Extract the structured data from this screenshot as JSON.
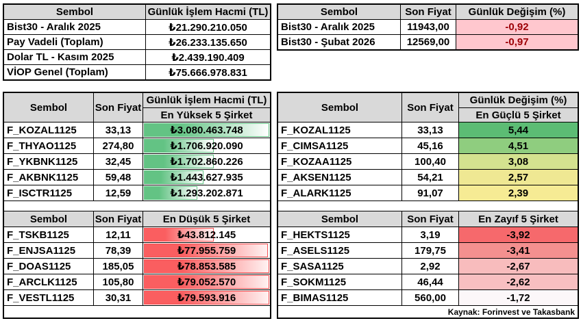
{
  "source_note": "Kaynak: Forinvest ve Takasbank",
  "palette": {
    "header_bg": "#D9D9D9",
    "border": "#000000",
    "bad_cell_bg": "#FFC7CE",
    "bad_cell_text": "#9C0006",
    "green_bar": "#63C384",
    "red_bar": "#FA5E60"
  },
  "volume_summary": {
    "col_symbol": "Sembol",
    "col_volume": "Günlük İşlem Hacmi (TL)",
    "rows": [
      {
        "symbol": "Bist30 - Aralık 2025",
        "volume": "₺21.290.210.050"
      },
      {
        "symbol": "Pay Vadeli (Toplam)",
        "volume": "₺26.233.135.650"
      },
      {
        "symbol": "Dolar TL - Kasım 2025",
        "volume": "₺2.439.190.409"
      },
      {
        "symbol": "VİOP Genel (Toplam)",
        "volume": "₺75.666.978.831"
      }
    ]
  },
  "index_change": {
    "col_symbol": "Sembol",
    "col_price": "Son Fiyat",
    "col_change": "Günlük Değişim (%)",
    "rows": [
      {
        "symbol": "Bist30 - Aralık 2025",
        "price": "11943,00",
        "change": "-0,92"
      },
      {
        "symbol": "Bist30 -  Şubat 2026",
        "price": "12569,00",
        "change": "-0,97"
      }
    ]
  },
  "volume_leaders": {
    "col_symbol": "Sembol",
    "col_price": "Son Fiyat",
    "col_value_line1": "Günlük İşlem Hacmi (TL)",
    "top_title": "En Yüksek 5 Şirket",
    "bottom_title": "En Düşük 5 Şirket",
    "top_rows": [
      {
        "symbol": "F_KOZAL1125",
        "price": "33,13",
        "volume": "₺3.080.463.748",
        "bar_pct": 100
      },
      {
        "symbol": "F_THYAO1125",
        "price": "274,80",
        "volume": "₺1.706.920.090",
        "bar_pct": 55.4
      },
      {
        "symbol": "F_YKBNK1125",
        "price": "32,45",
        "volume": "₺1.702.860.226",
        "bar_pct": 55.3
      },
      {
        "symbol": "F_AKBNK1125",
        "price": "59,48",
        "volume": "₺1.443.627.935",
        "bar_pct": 46.9
      },
      {
        "symbol": "F_ISCTR1125",
        "price": "12,59",
        "volume": "₺1.293.202.871",
        "bar_pct": 42.0
      }
    ],
    "bottom_rows": [
      {
        "symbol": "F_TSKB1125",
        "price": "12,11",
        "volume": "₺43.812.145",
        "bar_pct": 55.0
      },
      {
        "symbol": "F_ENJSA1125",
        "price": "78,39",
        "volume": "₺77.955.759",
        "bar_pct": 97.9
      },
      {
        "symbol": "F_DOAS1125",
        "price": "185,05",
        "volume": "₺78.853.585",
        "bar_pct": 99.1
      },
      {
        "symbol": "F_ARCLK1125",
        "price": "105,80",
        "volume": "₺79.052.570",
        "bar_pct": 99.3
      },
      {
        "symbol": "F_VESTL1125",
        "price": "30,31",
        "volume": "₺79.593.916",
        "bar_pct": 100
      }
    ]
  },
  "change_leaders": {
    "col_symbol": "Sembol",
    "col_price": "Son Fiyat",
    "col_value_line1": "Günlük Değişim (%)",
    "top_title": "En Güçlü 5 Şirket",
    "bottom_title": "En Zayıf 5 Şirket",
    "top_rows": [
      {
        "symbol": "F_KOZAL1125",
        "price": "33,13",
        "change": "5,44",
        "bg": "#5CBC74"
      },
      {
        "symbol": "F_CIMSA1125",
        "price": "45,16",
        "change": "4,51",
        "bg": "#8FCD7F"
      },
      {
        "symbol": "F_KOZAA1125",
        "price": "100,40",
        "change": "3,08",
        "bg": "#D4E28F"
      },
      {
        "symbol": "F_AKSEN1125",
        "price": "54,21",
        "change": "2,57",
        "bg": "#EFE893"
      },
      {
        "symbol": "F_ALARK1125",
        "price": "91,07",
        "change": "2,39",
        "bg": "#F6EB94"
      }
    ],
    "bottom_rows": [
      {
        "symbol": "F_HEKTS1125",
        "price": "3,19",
        "change": "-3,92",
        "bg": "#F6696C"
      },
      {
        "symbol": "F_ASELS1125",
        "price": "179,75",
        "change": "-3,41",
        "bg": "#F4908F"
      },
      {
        "symbol": "F_SASA1125",
        "price": "2,92",
        "change": "-2,67",
        "bg": "#F8BCBD"
      },
      {
        "symbol": "F_SOKM1125",
        "price": "46,44",
        "change": "-2,62",
        "bg": "#F8BFC1"
      },
      {
        "symbol": "F_BIMAS1125",
        "price": "560,00",
        "change": "-1,72",
        "bg": "#FCF7F9"
      }
    ]
  }
}
